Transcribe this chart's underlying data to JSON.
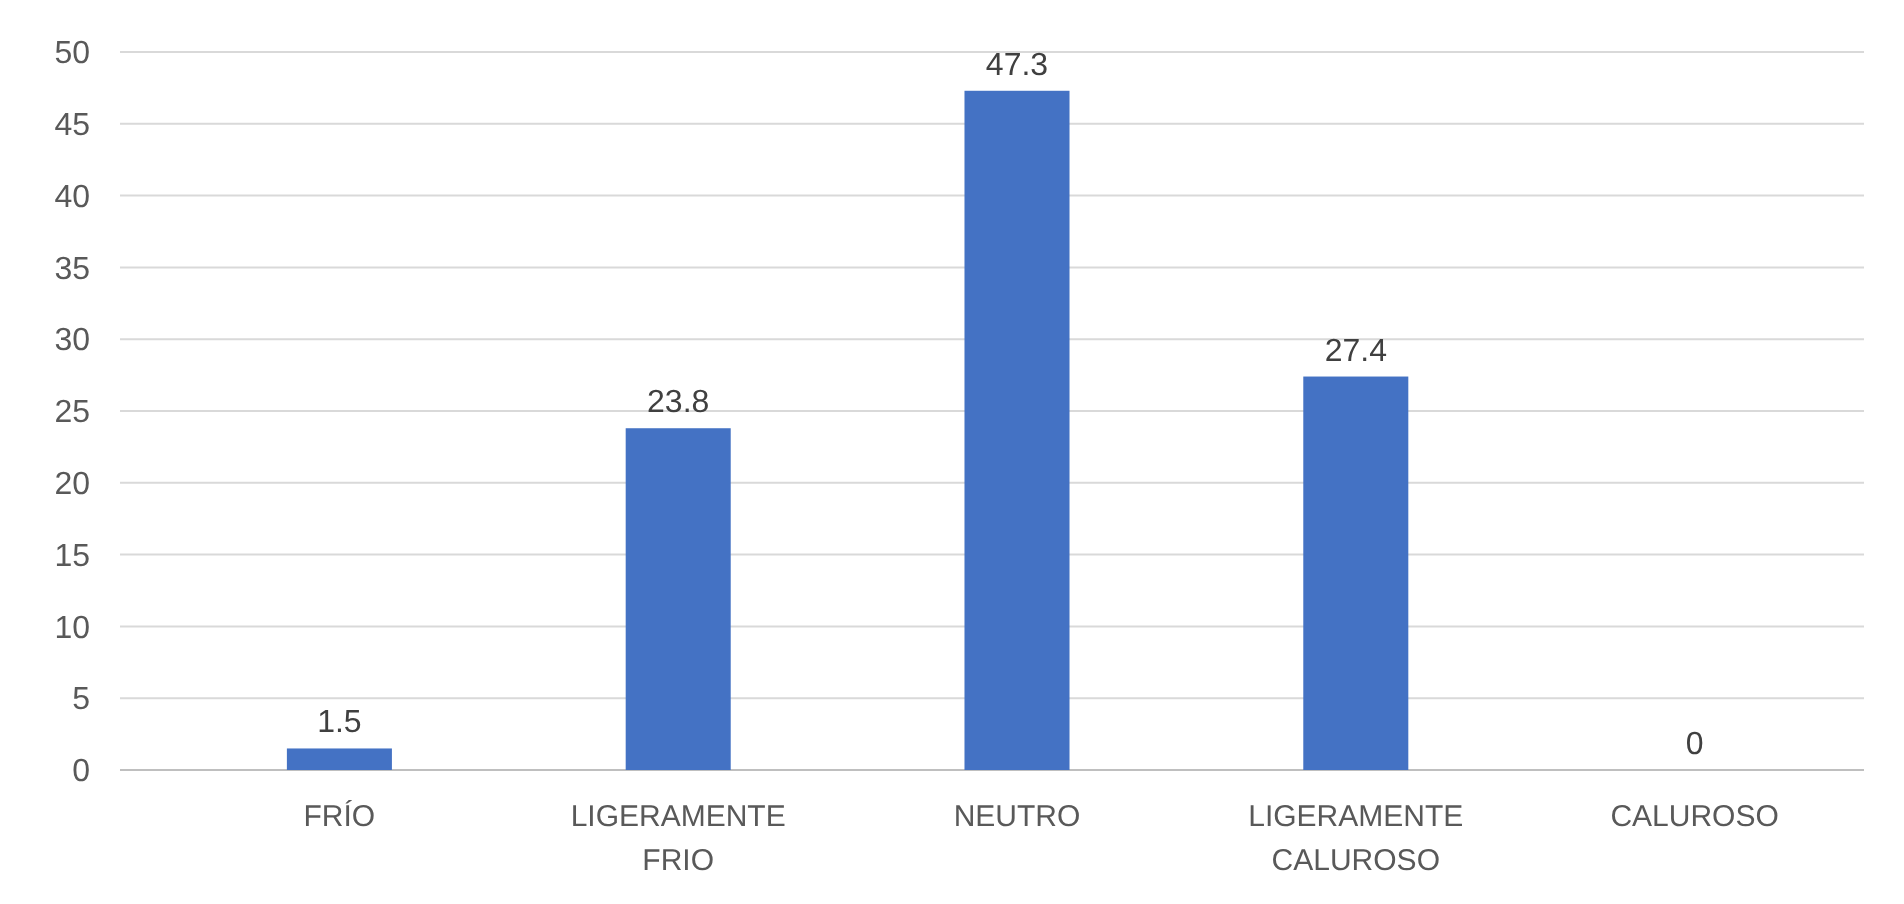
{
  "chart_data": {
    "type": "bar",
    "categories": [
      "FRÍO",
      "LIGERAMENTE FRIO",
      "NEUTRO",
      "LIGERAMENTE CALUROSO",
      "CALUROSO"
    ],
    "values": [
      1.5,
      23.8,
      47.3,
      27.4,
      0
    ],
    "color": "#4472c4",
    "ylim": [
      0,
      50
    ],
    "yticks": [
      0,
      5,
      10,
      15,
      20,
      25,
      30,
      35,
      40,
      45,
      50
    ],
    "grid": "y",
    "data_labels": true
  }
}
